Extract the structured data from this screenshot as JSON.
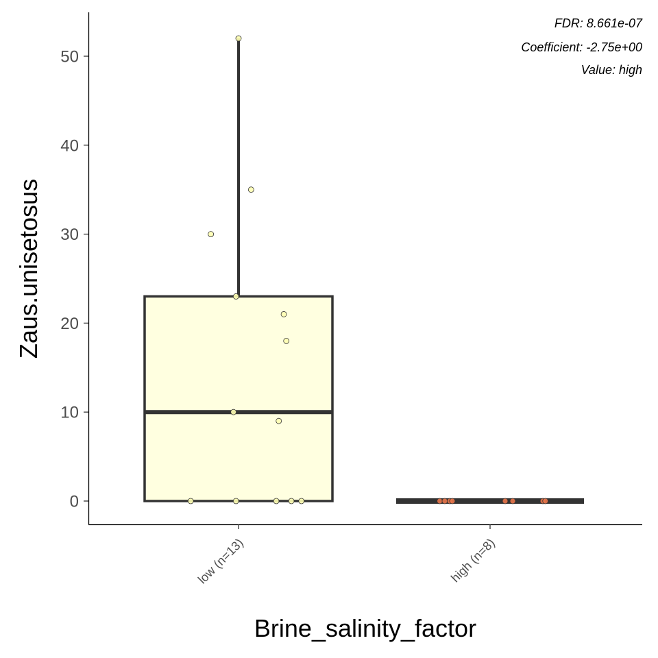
{
  "chart_data": {
    "type": "box",
    "xlabel": "Brine_salinity_factor",
    "ylabel": "Zaus.unisetosus",
    "ylim": [
      -2.6,
      54.5
    ],
    "yticks": [
      0,
      10,
      20,
      30,
      40,
      50
    ],
    "ytick_labels": [
      "0",
      "10",
      "20",
      "30",
      "40",
      "50"
    ],
    "categories": [
      "low (n=13)",
      "high (n=8)"
    ],
    "boxes": [
      {
        "category": "low (n=13)",
        "fill": "#FFFFE0",
        "point_color": "#FFFFB2",
        "q1": 0,
        "median": 10,
        "q3": 23,
        "whisker_low": 0,
        "whisker_high": 52,
        "points": [
          52,
          35,
          30,
          23,
          21,
          18,
          10,
          9,
          0,
          0,
          0,
          0,
          0
        ],
        "jitter": [
          0.0,
          0.05,
          -0.11,
          -0.01,
          0.18,
          0.19,
          -0.02,
          0.16,
          -0.19,
          -0.01,
          0.15,
          0.21,
          0.25
        ]
      },
      {
        "category": "high (n=8)",
        "fill": "#FFFFE0",
        "point_color": "#E9764A",
        "q1": 0,
        "median": 0,
        "q3": 0,
        "whisker_low": 0,
        "whisker_high": 0,
        "points": [
          0,
          0,
          0,
          0,
          0,
          0,
          0,
          0
        ],
        "jitter": [
          -0.2,
          -0.18,
          -0.16,
          -0.15,
          0.06,
          0.09,
          0.21,
          0.22
        ]
      }
    ],
    "annotations": [
      "FDR: 8.661e-07",
      "Coefficient: -2.75e+00",
      "Value: high"
    ],
    "legend": "none",
    "grid": false
  }
}
